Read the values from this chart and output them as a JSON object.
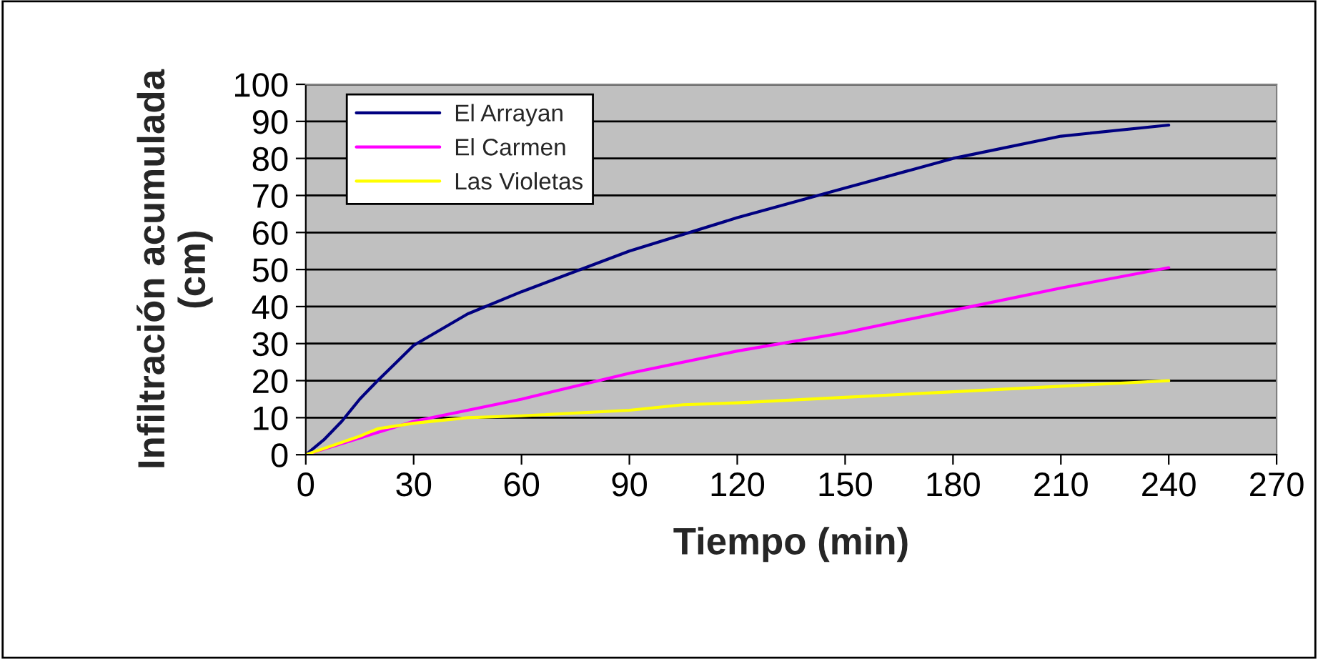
{
  "chart_data": {
    "type": "line",
    "xlabel": "Tiempo (min)",
    "ylabel": "Infiltración acumulada\n(cm)",
    "xlim": [
      0,
      270
    ],
    "xticks": [
      0,
      30,
      60,
      90,
      120,
      150,
      180,
      210,
      240,
      270
    ],
    "ylim": [
      0,
      100
    ],
    "yticks": [
      0,
      10,
      20,
      30,
      40,
      50,
      60,
      70,
      80,
      90,
      100
    ],
    "grid": "y",
    "legend": "top left",
    "marker": "none",
    "line_style": "solid",
    "series": [
      {
        "name": "El Arrayan",
        "color": "#000080",
        "x": [
          0,
          5,
          10,
          15,
          20,
          30,
          45,
          60,
          90,
          120,
          150,
          180,
          210,
          240
        ],
        "values": [
          0,
          4,
          9,
          15,
          20,
          29.5,
          38,
          44,
          55,
          64,
          72,
          80,
          86,
          89
        ]
      },
      {
        "name": "El Carmen",
        "color": "#ff00ff",
        "x": [
          0,
          30,
          45,
          60,
          90,
          120,
          150,
          180,
          210,
          240
        ],
        "values": [
          0,
          9,
          12,
          15,
          22,
          28,
          33,
          39,
          45,
          50.5
        ]
      },
      {
        "name": "Las Violetas",
        "color": "#ffff00",
        "x": [
          0,
          15,
          20,
          30,
          45,
          60,
          90,
          105,
          120,
          150,
          180,
          210,
          240
        ],
        "values": [
          0,
          5,
          7,
          8.5,
          10,
          10.5,
          12,
          13.5,
          14,
          15.5,
          17,
          18.5,
          20
        ]
      }
    ]
  }
}
